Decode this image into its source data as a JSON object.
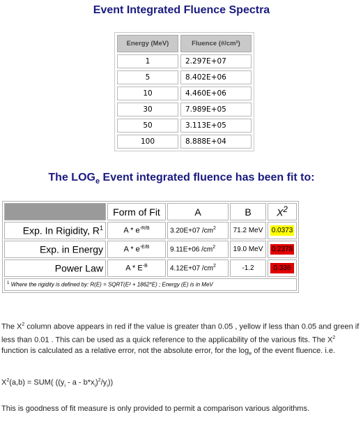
{
  "title1": "Event Integrated Fluence Spectra",
  "fluence_table": {
    "headers": [
      "Energy (MeV)",
      "Fluence (#/cm²)"
    ],
    "rows": [
      [
        "1",
        "2.297E+07"
      ],
      [
        "5",
        "8.402E+06"
      ],
      [
        "10",
        "4.460E+06"
      ],
      [
        "30",
        "7.989E+05"
      ],
      [
        "50",
        "3.113E+05"
      ],
      [
        "100",
        "8.888E+04"
      ]
    ]
  },
  "title2": {
    "pre": "The LOG",
    "sub": "e",
    "post": " Event integrated fluence has been fit to:"
  },
  "fit_table": {
    "headers": {
      "form": "Form of Fit",
      "a": "A",
      "b": "B",
      "x": "X",
      "x_sup": "2"
    },
    "rows": [
      {
        "name": "Exp. In Rigidity, R",
        "name_sup": "1",
        "formula": "A * e",
        "formula_sup": "-R/B",
        "a": "3.20E+07 /cm",
        "a_sup": "2",
        "b": "71.2 MeV",
        "x": "0.0373",
        "x_color": "#ffff00"
      },
      {
        "name": "Exp. in Energy",
        "name_sup": "",
        "formula": "A * e",
        "formula_sup": "-E/B",
        "a": "9.11E+06 /cm",
        "a_sup": "2",
        "b": "19.0 MeV",
        "x": "0.2378",
        "x_color": "#e00000"
      },
      {
        "name": "Power Law",
        "name_sup": "",
        "formula": "A * E",
        "formula_sup": "-B",
        "a": "4.12E+07 /cm",
        "a_sup": "2",
        "b": "-1.2",
        "x": "0.336",
        "x_color": "#e00000"
      }
    ],
    "note_sup": "1",
    "note": " Where the rigidity is defined by: R(E) = SQRT(E² + 1862*E) ; Energy (E) is in MeV"
  },
  "paragraph1": {
    "t1": "The X",
    "t2": " column above appears in red if the value is greater than 0.05 , yellow if less than 0.05 and green if less than 0.01 . This can be used as a quick reference to the applicability of the various fits. The X",
    "t3": " function is calculated as a relative error, not the absolute error, for the log",
    "t3_sub": "e",
    "t4": " of the event fluence. i.e."
  },
  "paragraph2": {
    "x": "X",
    "rest": "(a,b) = SUM( ((y",
    "s1": "i",
    "mid": " - a - b*x",
    "s2": "i",
    "close": ")",
    "sq": "2",
    "tail": "/y",
    "s3": "i",
    "end": "))"
  },
  "paragraph3": "This is goodness of fit measure is only provided to permit a comparison various algorithms."
}
